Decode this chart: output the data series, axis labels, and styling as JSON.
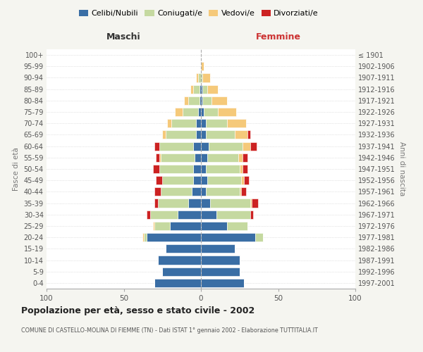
{
  "age_groups": [
    "0-4",
    "5-9",
    "10-14",
    "15-19",
    "20-24",
    "25-29",
    "30-34",
    "35-39",
    "40-44",
    "45-49",
    "50-54",
    "55-59",
    "60-64",
    "65-69",
    "70-74",
    "75-79",
    "80-84",
    "85-89",
    "90-94",
    "95-99",
    "100+"
  ],
  "birth_years": [
    "1997-2001",
    "1992-1996",
    "1987-1991",
    "1982-1986",
    "1977-1981",
    "1972-1976",
    "1967-1971",
    "1962-1966",
    "1957-1961",
    "1952-1956",
    "1947-1951",
    "1942-1946",
    "1937-1941",
    "1932-1936",
    "1927-1931",
    "1922-1926",
    "1917-1921",
    "1912-1916",
    "1907-1911",
    "1902-1906",
    "≤ 1901"
  ],
  "maschi": {
    "celibi": [
      30,
      25,
      28,
      23,
      35,
      20,
      15,
      8,
      6,
      5,
      5,
      4,
      5,
      3,
      3,
      2,
      1,
      1,
      0,
      0,
      0
    ],
    "coniugati": [
      0,
      0,
      0,
      0,
      2,
      10,
      18,
      20,
      20,
      20,
      22,
      22,
      22,
      20,
      16,
      10,
      7,
      4,
      2,
      0,
      0
    ],
    "vedovi": [
      0,
      0,
      0,
      0,
      1,
      1,
      0,
      0,
      0,
      0,
      0,
      1,
      0,
      2,
      3,
      5,
      3,
      2,
      1,
      0,
      0
    ],
    "divorziati": [
      0,
      0,
      0,
      0,
      0,
      0,
      2,
      2,
      4,
      4,
      4,
      2,
      3,
      0,
      0,
      0,
      0,
      0,
      0,
      0,
      0
    ]
  },
  "femmine": {
    "nubili": [
      28,
      25,
      25,
      22,
      35,
      17,
      10,
      6,
      3,
      4,
      3,
      4,
      5,
      3,
      3,
      2,
      1,
      1,
      0,
      0,
      0
    ],
    "coniugate": [
      0,
      0,
      0,
      0,
      5,
      13,
      22,
      26,
      22,
      22,
      22,
      20,
      22,
      19,
      14,
      9,
      6,
      3,
      1,
      0,
      0
    ],
    "vedove": [
      0,
      0,
      0,
      0,
      0,
      0,
      0,
      1,
      1,
      2,
      2,
      3,
      5,
      8,
      12,
      12,
      10,
      7,
      5,
      2,
      0
    ],
    "divorziate": [
      0,
      0,
      0,
      0,
      0,
      0,
      2,
      4,
      3,
      3,
      3,
      3,
      4,
      2,
      0,
      0,
      0,
      0,
      0,
      0,
      0
    ]
  },
  "colors": {
    "celibi": "#3a6ea5",
    "coniugati": "#c5d9a0",
    "vedovi": "#f5c97a",
    "divorziati": "#cc2222"
  },
  "xlim": [
    -100,
    100
  ],
  "xticks": [
    -100,
    -50,
    0,
    50,
    100
  ],
  "title": "Popolazione per età, sesso e stato civile - 2002",
  "subtitle": "COMUNE DI CASTELLO-MOLINA DI FIEMME (TN) - Dati ISTAT 1° gennaio 2002 - Elaborazione TUTTITALIA.IT",
  "ylabel_left": "Fasce di età",
  "ylabel_right": "Anni di nascita",
  "xlabel_maschi": "Maschi",
  "xlabel_femmine": "Femmine",
  "legend_labels": [
    "Celibi/Nubili",
    "Coniugati/e",
    "Vedovi/e",
    "Divorziati/e"
  ],
  "bg_color": "#f5f5f0",
  "plot_bg": "#ffffff"
}
